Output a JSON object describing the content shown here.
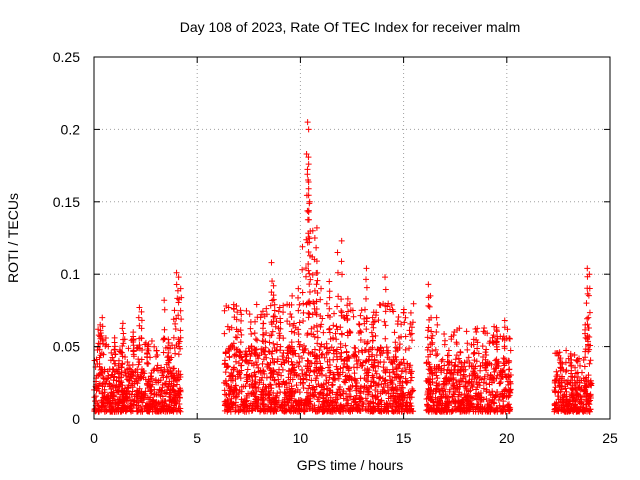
{
  "chart_data": {
    "type": "scatter",
    "title": "Day 108 of 2023, Rate Of TEC Index for receiver malm",
    "xlabel": "GPS time / hours",
    "ylabel": "ROTI / TECUs",
    "xlim": [
      0,
      25
    ],
    "ylim": [
      0,
      0.25
    ],
    "x_ticks": [
      "0",
      "5",
      "10",
      "15",
      "20",
      "25"
    ],
    "y_ticks": [
      "0",
      "0.05",
      "0.1",
      "0.15",
      "0.2",
      "0.25"
    ],
    "grid": true,
    "legend": "none",
    "marker": "plus",
    "series_color": "#ff0000",
    "segments": [
      {
        "x_range": [
          0.0,
          4.2
        ],
        "baseline_range": [
          0.005,
          0.035
        ]
      },
      {
        "x_range": [
          6.3,
          15.5
        ],
        "baseline_range": [
          0.005,
          0.05
        ]
      },
      {
        "x_range": [
          16.1,
          20.2
        ],
        "baseline_range": [
          0.005,
          0.04
        ]
      },
      {
        "x_range": [
          22.3,
          24.1
        ],
        "baseline_range": [
          0.005,
          0.03
        ]
      }
    ],
    "peaks": [
      {
        "x": 0.2,
        "y": 0.062
      },
      {
        "x": 0.3,
        "y": 0.065
      },
      {
        "x": 0.4,
        "y": 0.07
      },
      {
        "x": 1.0,
        "y": 0.056
      },
      {
        "x": 1.4,
        "y": 0.066
      },
      {
        "x": 1.9,
        "y": 0.06
      },
      {
        "x": 2.2,
        "y": 0.077
      },
      {
        "x": 2.3,
        "y": 0.074
      },
      {
        "x": 2.6,
        "y": 0.05
      },
      {
        "x": 3.4,
        "y": 0.082
      },
      {
        "x": 3.6,
        "y": 0.055
      },
      {
        "x": 3.9,
        "y": 0.075
      },
      {
        "x": 4.0,
        "y": 0.101
      },
      {
        "x": 4.1,
        "y": 0.098
      },
      {
        "x": 4.2,
        "y": 0.09
      },
      {
        "x": 6.9,
        "y": 0.078
      },
      {
        "x": 7.1,
        "y": 0.075
      },
      {
        "x": 7.6,
        "y": 0.067
      },
      {
        "x": 8.2,
        "y": 0.066
      },
      {
        "x": 8.6,
        "y": 0.108
      },
      {
        "x": 8.7,
        "y": 0.092
      },
      {
        "x": 9.0,
        "y": 0.077
      },
      {
        "x": 9.6,
        "y": 0.085
      },
      {
        "x": 9.9,
        "y": 0.09
      },
      {
        "x": 10.1,
        "y": 0.119
      },
      {
        "x": 10.3,
        "y": 0.183
      },
      {
        "x": 10.35,
        "y": 0.205
      },
      {
        "x": 10.4,
        "y": 0.2
      },
      {
        "x": 10.4,
        "y": 0.159
      },
      {
        "x": 10.45,
        "y": 0.15
      },
      {
        "x": 10.4,
        "y": 0.176
      },
      {
        "x": 10.6,
        "y": 0.13
      },
      {
        "x": 10.7,
        "y": 0.125
      },
      {
        "x": 10.8,
        "y": 0.132
      },
      {
        "x": 10.8,
        "y": 0.109
      },
      {
        "x": 11.0,
        "y": 0.09
      },
      {
        "x": 11.4,
        "y": 0.095
      },
      {
        "x": 11.8,
        "y": 0.115
      },
      {
        "x": 12.0,
        "y": 0.123
      },
      {
        "x": 12.3,
        "y": 0.083
      },
      {
        "x": 13.2,
        "y": 0.104
      },
      {
        "x": 13.5,
        "y": 0.07
      },
      {
        "x": 14.1,
        "y": 0.098
      },
      {
        "x": 14.6,
        "y": 0.053
      },
      {
        "x": 16.2,
        "y": 0.093
      },
      {
        "x": 16.3,
        "y": 0.085
      },
      {
        "x": 16.6,
        "y": 0.07
      },
      {
        "x": 18.4,
        "y": 0.055
      },
      {
        "x": 19.0,
        "y": 0.048
      },
      {
        "x": 19.5,
        "y": 0.063
      },
      {
        "x": 19.9,
        "y": 0.068
      },
      {
        "x": 22.6,
        "y": 0.042
      },
      {
        "x": 23.1,
        "y": 0.045
      },
      {
        "x": 23.8,
        "y": 0.065
      },
      {
        "x": 23.9,
        "y": 0.104
      },
      {
        "x": 24.0,
        "y": 0.1
      },
      {
        "x": 23.95,
        "y": 0.07
      }
    ]
  }
}
